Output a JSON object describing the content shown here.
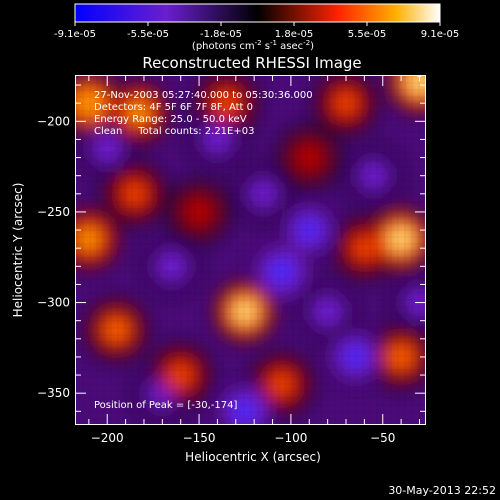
{
  "colorbar": {
    "tick_labels": [
      "-9.1e-05",
      "-5.5e-05",
      "-1.8e-05",
      "1.8e-05",
      "5.5e-05",
      "9.1e-05"
    ],
    "units_prefix": "(photons cm",
    "units_exp1": "-2",
    "units_mid": " s",
    "units_exp2": "-1",
    "units_suffix": " asec",
    "units_exp3": "-2",
    "units_close": ")",
    "range": [
      -9.1e-05,
      9.1e-05
    ]
  },
  "header": {
    "title": "Reconstructed RHESSI Image"
  },
  "annotations": {
    "time_range": "27-Nov-2003 05:27:40.000 to 05:30:36.000",
    "detectors": "Detectors: 4F 5F 6F 7F 8F, Att 0",
    "energy_range": "Energy Range: 25.0 - 50.0 keV",
    "clean_info": "Clean     Total counts: 2.21E+03",
    "peak_position": "Position of Peak = [-30,-174]"
  },
  "footer": {
    "date_stamp": "30-May-2013 22:52"
  },
  "chart_data": {
    "type": "heatmap",
    "title": "Reconstructed RHESSI Image",
    "xlabel": "Heliocentric X (arcsec)",
    "ylabel": "Heliocentric Y (arcsec)",
    "xlim": [
      -217,
      -27
    ],
    "ylim": [
      -367,
      -175
    ],
    "x_ticks": [
      -200,
      -150,
      -100,
      -50
    ],
    "y_ticks": [
      -200,
      -250,
      -300,
      -350
    ],
    "x_tick_labels": [
      "−200",
      "−150",
      "−100",
      "−50"
    ],
    "y_tick_labels": [
      "−200",
      "−250",
      "−300",
      "−350"
    ],
    "colormap": "red-temperature (blue-purple-black-red-yellow-white)",
    "hot_spots": [
      {
        "x": -30,
        "y": -178,
        "value": 9.1e-05
      },
      {
        "x": -210,
        "y": -190,
        "value": 7.5e-05
      },
      {
        "x": -183,
        "y": -195,
        "value": 6.5e-05
      },
      {
        "x": -135,
        "y": -190,
        "value": 5e-05
      },
      {
        "x": -70,
        "y": -190,
        "value": 5e-05
      },
      {
        "x": -60,
        "y": -270,
        "value": 5e-05
      },
      {
        "x": -40,
        "y": -265,
        "value": 8.5e-05
      },
      {
        "x": -125,
        "y": -305,
        "value": 8e-05
      },
      {
        "x": -195,
        "y": -315,
        "value": 6e-05
      },
      {
        "x": -210,
        "y": -265,
        "value": 7e-05
      },
      {
        "x": -185,
        "y": -240,
        "value": 5e-05
      },
      {
        "x": -160,
        "y": -340,
        "value": 5e-05
      },
      {
        "x": -105,
        "y": -345,
        "value": 5e-05
      },
      {
        "x": -40,
        "y": -330,
        "value": 6e-05
      },
      {
        "x": -150,
        "y": -250,
        "value": 3e-05
      },
      {
        "x": -90,
        "y": -220,
        "value": 3e-05
      }
    ],
    "cold_spots": [
      {
        "x": -105,
        "y": -283,
        "value": -9.1e-05
      },
      {
        "x": -125,
        "y": -360,
        "value": -8e-05
      },
      {
        "x": -90,
        "y": -260,
        "value": -7e-05
      },
      {
        "x": -65,
        "y": -330,
        "value": -7e-05
      },
      {
        "x": -165,
        "y": -280,
        "value": -6e-05
      },
      {
        "x": -200,
        "y": -215,
        "value": -5.5e-05
      },
      {
        "x": -140,
        "y": -210,
        "value": -5.5e-05
      },
      {
        "x": -55,
        "y": -230,
        "value": -5e-05
      },
      {
        "x": -80,
        "y": -305,
        "value": -6e-05
      },
      {
        "x": -170,
        "y": -350,
        "value": -5e-05
      },
      {
        "x": -30,
        "y": -300,
        "value": -5e-05
      },
      {
        "x": -115,
        "y": -240,
        "value": -5e-05
      }
    ],
    "peak": {
      "x": -30,
      "y": -174
    }
  }
}
